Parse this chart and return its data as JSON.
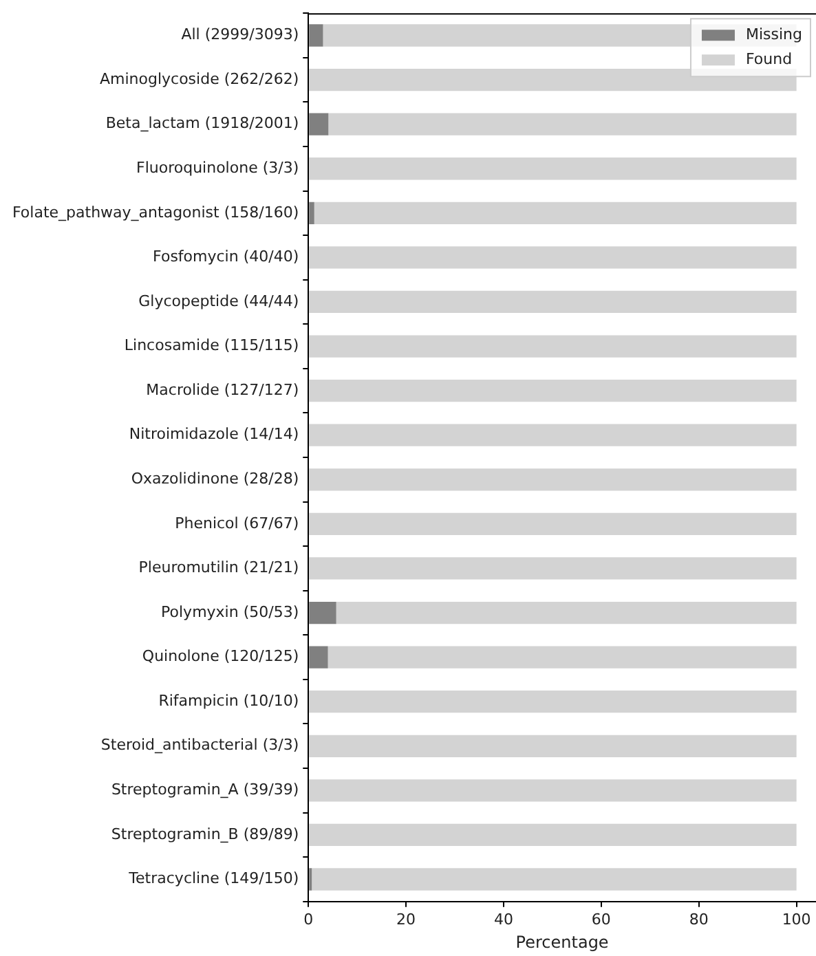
{
  "chart_data": {
    "type": "bar",
    "orientation": "horizontal",
    "stacked": true,
    "xlabel": "Percentage",
    "categories": [
      "All (2999/3093)",
      "Aminoglycoside (262/262)",
      "Beta_lactam (1918/2001)",
      "Fluoroquinolone (3/3)",
      "Folate_pathway_antagonist (158/160)",
      "Fosfomycin (40/40)",
      "Glycopeptide (44/44)",
      "Lincosamide (115/115)",
      "Macrolide (127/127)",
      "Nitroimidazole (14/14)",
      "Oxazolidinone (28/28)",
      "Phenicol (67/67)",
      "Pleuromutilin (21/21)",
      "Polymyxin (50/53)",
      "Quinolone (120/125)",
      "Rifampicin (10/10)",
      "Steroid_antibacterial (3/3)",
      "Streptogramin_A (39/39)",
      "Streptogramin_B (89/89)",
      "Tetracycline (149/150)"
    ],
    "series": [
      {
        "name": "Missing",
        "color": "#808080",
        "values": [
          3.0,
          0,
          4.1,
          0,
          1.2,
          0,
          0,
          0,
          0,
          0,
          0,
          0,
          0,
          5.7,
          4.0,
          0,
          0,
          0,
          0,
          0.7
        ]
      },
      {
        "name": "Found",
        "color": "#d3d3d3",
        "values": [
          97.0,
          100,
          95.9,
          100,
          98.8,
          100,
          100,
          100,
          100,
          100,
          100,
          100,
          100,
          94.3,
          96.0,
          100,
          100,
          100,
          100,
          99.3
        ]
      }
    ],
    "xlim": [
      0,
      104
    ],
    "xticks": [
      0,
      20,
      40,
      60,
      80,
      100
    ],
    "grid": false,
    "legend": "top right"
  }
}
